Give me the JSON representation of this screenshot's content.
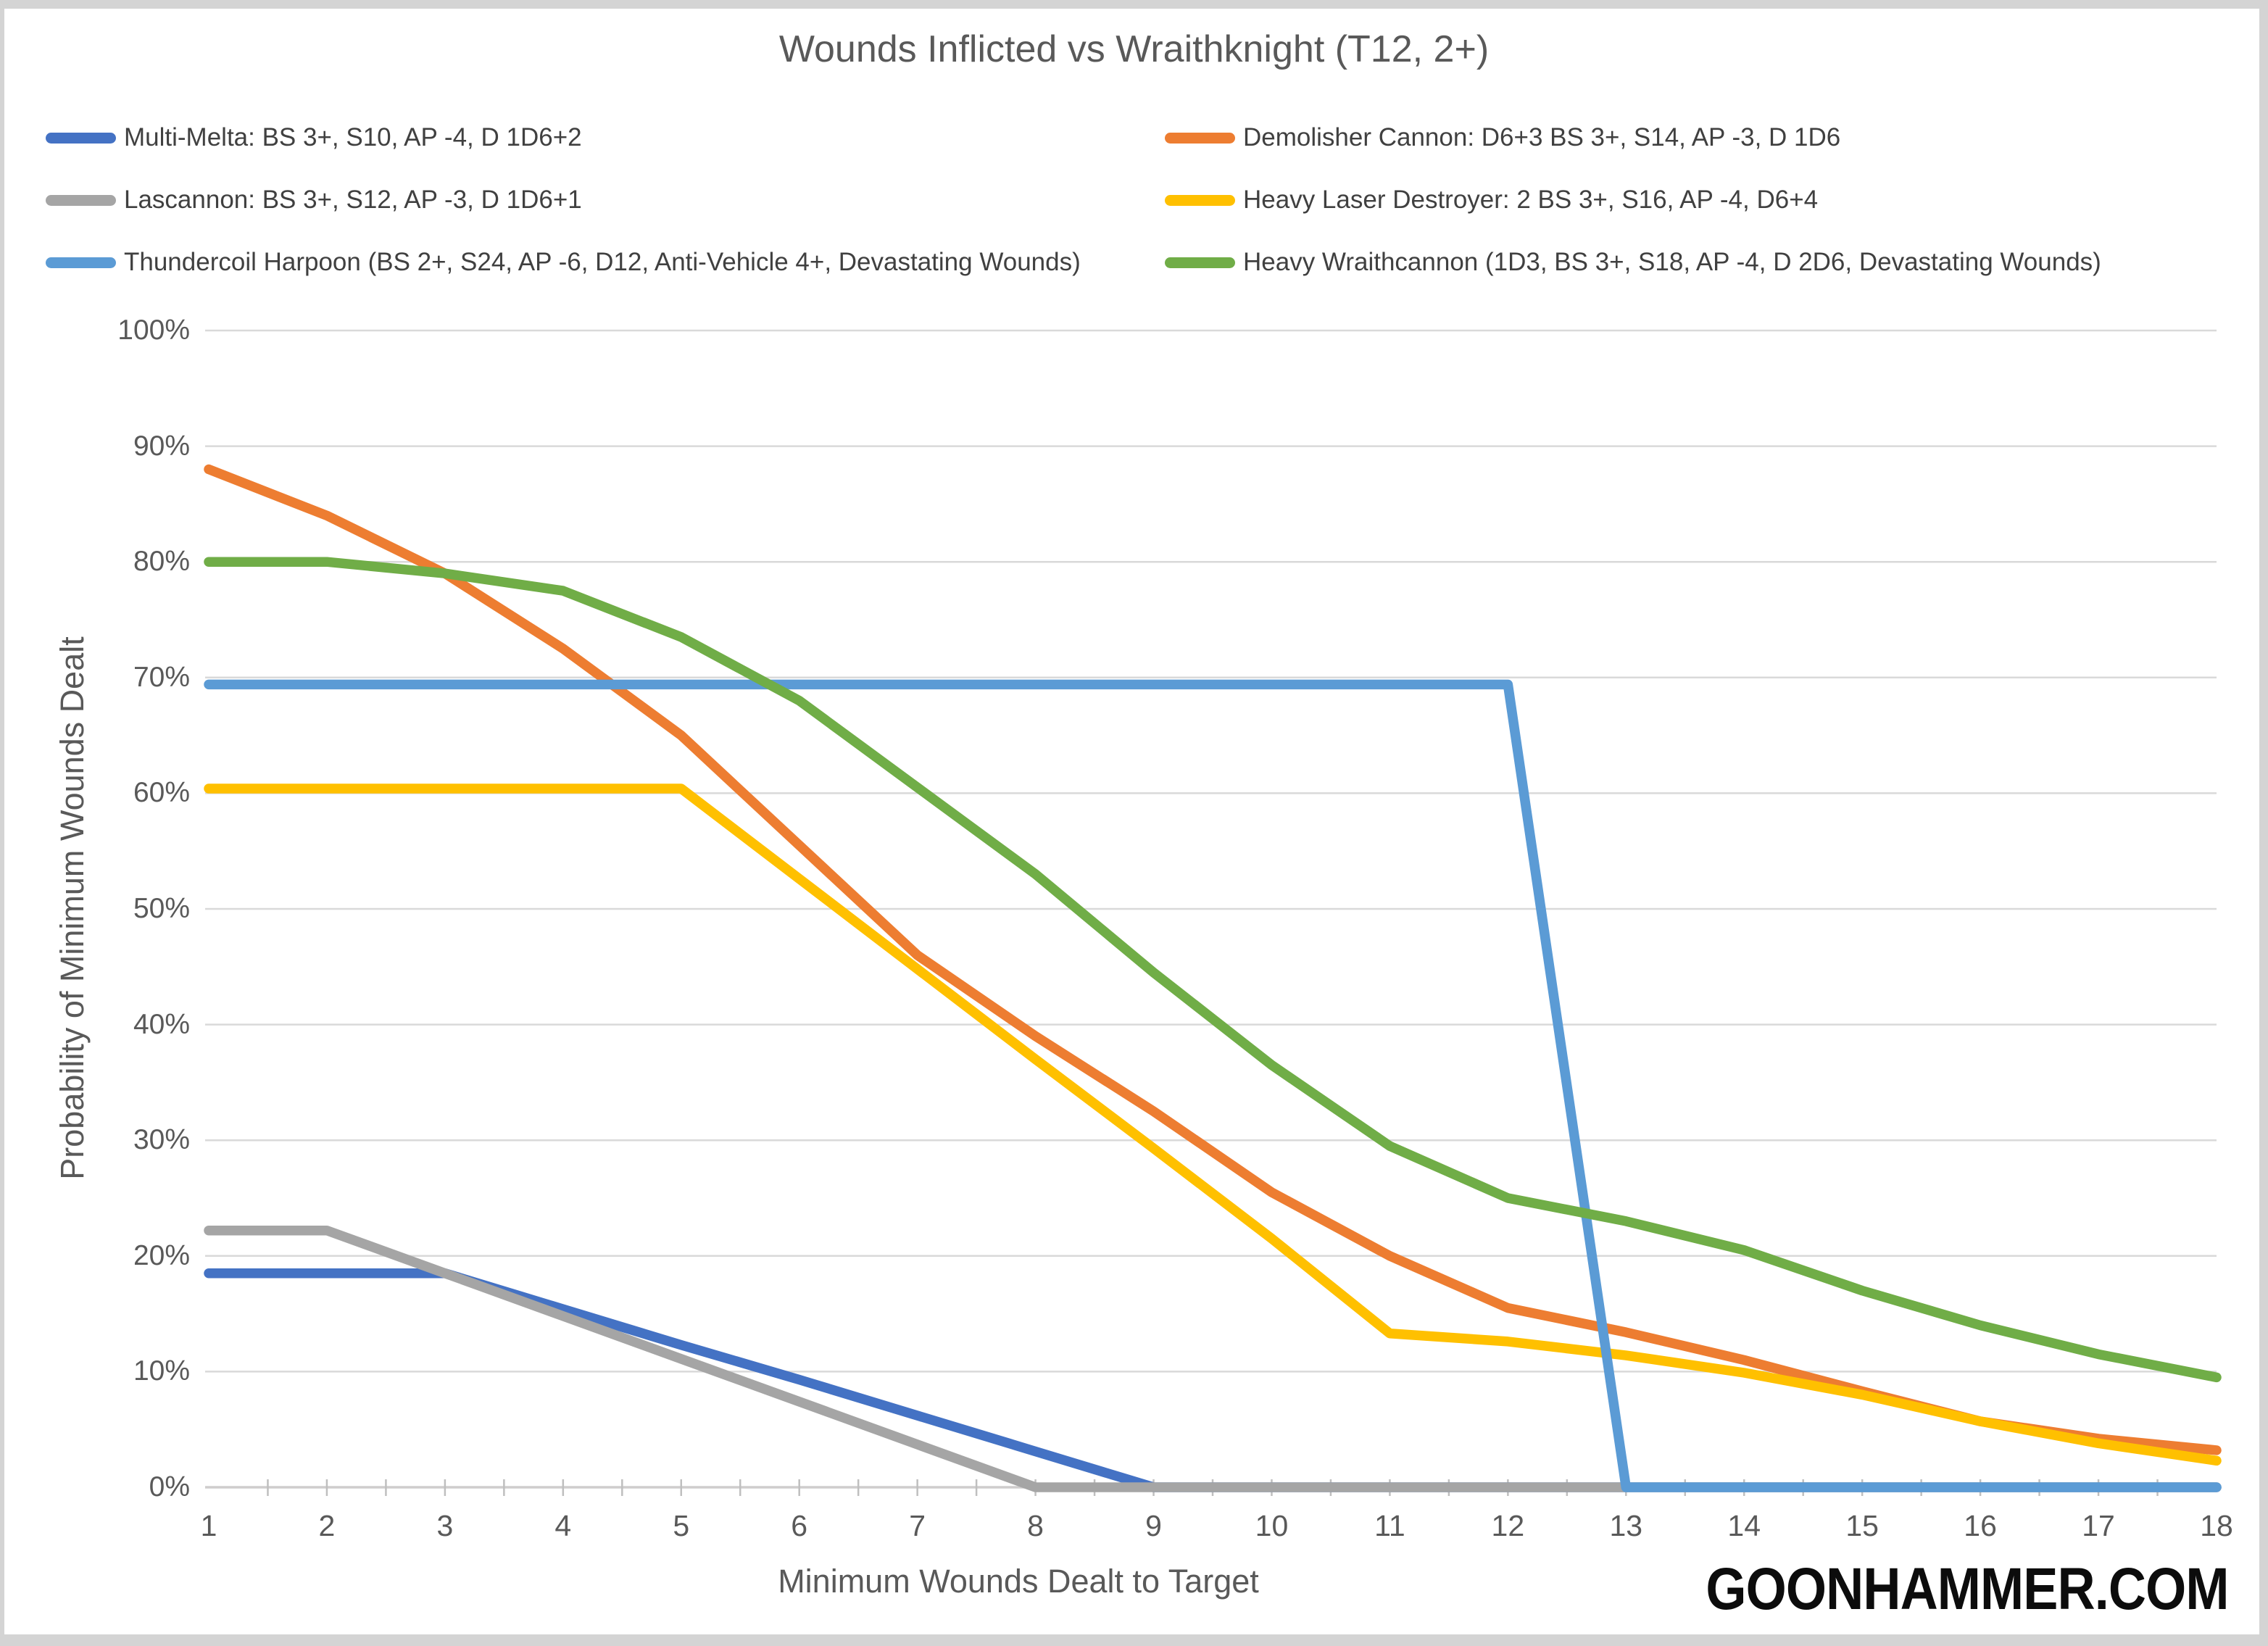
{
  "watermark": "GOONHAMMER.COM",
  "chart_data": {
    "type": "line",
    "title": "Wounds Inflicted vs Wraithknight (T12, 2+)",
    "xlabel": "Minimum Wounds Dealt to Target",
    "ylabel": "Probability of Minimum Wounds Dealt",
    "x": [
      1,
      2,
      3,
      4,
      5,
      6,
      7,
      8,
      9,
      10,
      11,
      12,
      13,
      14,
      15,
      16,
      17,
      18
    ],
    "ylim": [
      0,
      100
    ],
    "ytick_labels": [
      "0%",
      "10%",
      "20%",
      "30%",
      "40%",
      "50%",
      "60%",
      "70%",
      "80%",
      "90%",
      "100%"
    ],
    "grid": true,
    "legend_position": "top",
    "colors": {
      "gridline": "#D9D9D9",
      "axis_line": "#CFCDCD",
      "tick_mark": "#BFBFBF",
      "text": "#595959"
    },
    "series": [
      {
        "name": "Multi-Melta: BS 3+, S10, AP -4, D 1D6+2",
        "color": "#4472C4",
        "values": [
          18.5,
          18.5,
          18.5,
          15.4,
          12.3,
          9.3,
          6.2,
          3.1,
          0,
          0,
          0,
          0,
          0,
          0,
          0,
          0,
          0,
          0
        ]
      },
      {
        "name": "Demolisher Cannon: D6+3 BS 3+, S14, AP -3, D 1D6",
        "color": "#ED7D31",
        "values": [
          88,
          84,
          79,
          72.5,
          65,
          55.5,
          46,
          39,
          32.5,
          25.5,
          20,
          15.5,
          13.4,
          11,
          8.3,
          5.7,
          4.2,
          3.2
        ]
      },
      {
        "name": "Lascannon: BS 3+, S12, AP -3, D 1D6+1",
        "color": "#A5A5A5",
        "values": [
          22.2,
          22.2,
          18.5,
          14.8,
          11.1,
          7.4,
          3.7,
          0,
          0,
          0,
          0,
          0,
          0,
          0,
          0,
          0,
          0,
          0
        ]
      },
      {
        "name": "Heavy Laser Destroyer: 2 BS 3+, S16, AP -4, D6+4",
        "color": "#FFC000",
        "values": [
          60.4,
          60.4,
          60.4,
          60.4,
          60.4,
          52.6,
          44.8,
          37,
          29.3,
          21.5,
          13.3,
          12.6,
          11.4,
          9.9,
          8,
          5.7,
          3.8,
          2.3
        ]
      },
      {
        "name": "Thundercoil Harpoon (BS 2+, S24, AP -6, D12, Anti-Vehicle 4+, Devastating Wounds)",
        "color": "#5B9BD5",
        "values": [
          69.4,
          69.4,
          69.4,
          69.4,
          69.4,
          69.4,
          69.4,
          69.4,
          69.4,
          69.4,
          69.4,
          69.4,
          0,
          0,
          0,
          0,
          0,
          0
        ]
      },
      {
        "name": "Heavy Wraithcannon (1D3, BS 3+, S18, AP -4, D 2D6, Devastating Wounds)",
        "color": "#70AD47",
        "values": [
          80,
          80,
          79,
          77.5,
          73.5,
          68,
          60.5,
          53,
          44.5,
          36.5,
          29.5,
          25,
          23,
          20.5,
          17,
          14,
          11.5,
          9.5
        ]
      }
    ]
  }
}
